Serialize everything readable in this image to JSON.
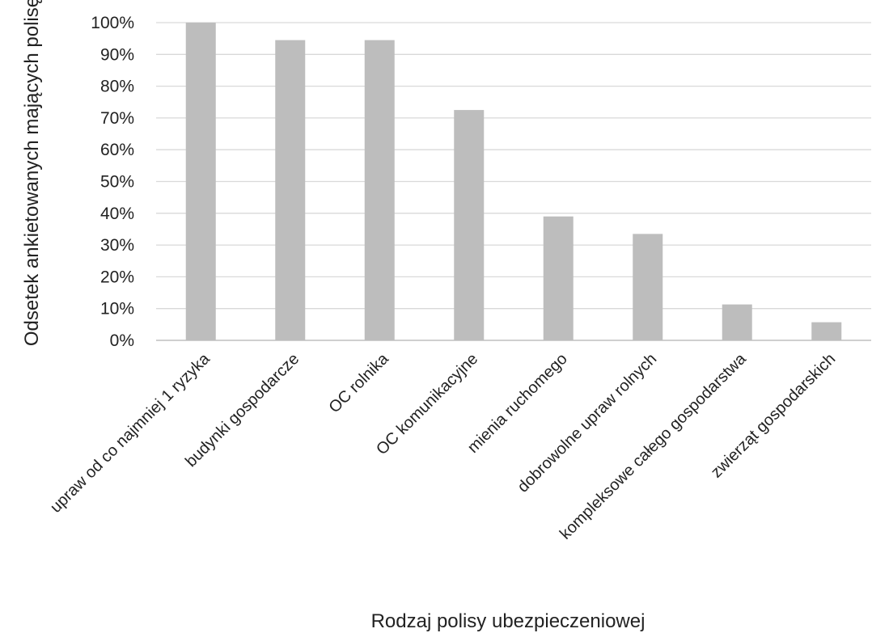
{
  "chart_data": {
    "type": "bar",
    "title": "",
    "xlabel": "Rodzaj polisy ubezpieczeniowej",
    "ylabel": "Odsetek ankietowanych mających polisę",
    "categories": [
      "upraw od co najmniej 1 ryzyka",
      "budynki gospodarcze",
      "OC rolnika",
      "OC komunikacyjne",
      "mienia ruchomego",
      "dobrowolne upraw rolnych",
      "kompleksowe całego gospodarstwa",
      "zwierząt gospodarskich"
    ],
    "values": [
      1.0,
      0.945,
      0.945,
      0.725,
      0.39,
      0.335,
      0.113,
      0.057
    ],
    "ylim": [
      0,
      1.0
    ],
    "yticks": [
      0,
      0.1,
      0.2,
      0.3,
      0.4,
      0.5,
      0.6,
      0.7,
      0.8,
      0.9,
      1.0
    ],
    "ytick_labels": [
      "0%",
      "10%",
      "20%",
      "30%",
      "40%",
      "50%",
      "60%",
      "70%",
      "80%",
      "90%",
      "100%"
    ],
    "grid": true,
    "legend": "none",
    "bar_color": "#bdbdbd",
    "grid_color": "#d9d9d9",
    "axis_color": "#bfbfbf"
  }
}
